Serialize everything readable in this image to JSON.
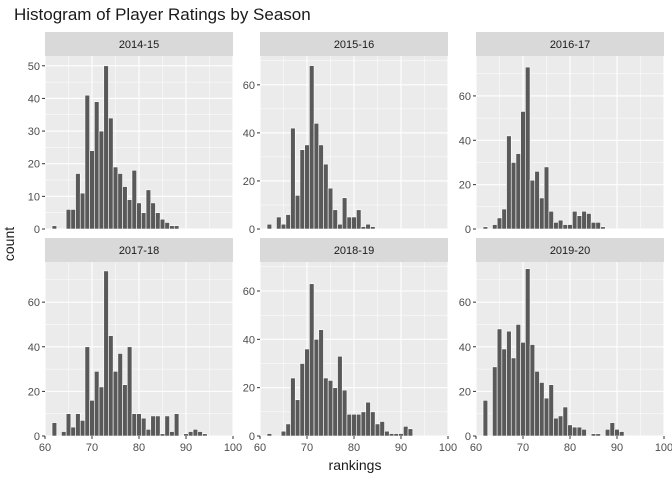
{
  "chart_data": {
    "type": "bar",
    "title": "Histogram of Player Ratings by Season",
    "xlabel": "rankings",
    "ylabel": "count",
    "xlim": [
      60,
      100
    ],
    "x_ticks": [
      60,
      70,
      80,
      90,
      100
    ],
    "bins": [
      62,
      64,
      65,
      66,
      67,
      68,
      69,
      70,
      71,
      72,
      73,
      74,
      75,
      76,
      77,
      78,
      79,
      80,
      81,
      82,
      83,
      84,
      85,
      86,
      87,
      88,
      89,
      90,
      91,
      92,
      93,
      94,
      95,
      96,
      97,
      98
    ],
    "grid": true,
    "panels": [
      {
        "season": "2014-15",
        "ylim": [
          0,
          53
        ],
        "y_ticks": [
          0,
          10,
          20,
          30,
          40,
          50
        ],
        "values": [
          1,
          0,
          6,
          6,
          17,
          11,
          41,
          24,
          39,
          30,
          50,
          34,
          19,
          17,
          13,
          9,
          18,
          8,
          5,
          12,
          8,
          5,
          3,
          2,
          1,
          1,
          0,
          0,
          0,
          0,
          0,
          0,
          0,
          0,
          0,
          0
        ]
      },
      {
        "season": "2015-16",
        "ylim": [
          0,
          72
        ],
        "y_ticks": [
          0,
          20,
          40,
          60
        ],
        "values": [
          2,
          5,
          2,
          6,
          42,
          14,
          33,
          35,
          68,
          44,
          35,
          27,
          17,
          8,
          2,
          13,
          5,
          5,
          8,
          1,
          2,
          1,
          0,
          0,
          0,
          0,
          0,
          0,
          0,
          0,
          0,
          0,
          0,
          0,
          0,
          0
        ]
      },
      {
        "season": "2016-17",
        "ylim": [
          0,
          78
        ],
        "y_ticks": [
          0,
          20,
          40,
          60
        ],
        "values": [
          1,
          2,
          5,
          9,
          42,
          30,
          34,
          53,
          73,
          22,
          26,
          14,
          28,
          8,
          3,
          4,
          2,
          2,
          8,
          6,
          8,
          7,
          3,
          3,
          1,
          0,
          0,
          0,
          0,
          0,
          0,
          0,
          0,
          0,
          0,
          0
        ]
      },
      {
        "season": "2017-18",
        "ylim": [
          0,
          78
        ],
        "y_ticks": [
          0,
          20,
          40,
          60
        ],
        "values": [
          6,
          2,
          10,
          4,
          10,
          7,
          40,
          16,
          29,
          22,
          74,
          45,
          29,
          37,
          23,
          40,
          10,
          10,
          8,
          3,
          9,
          9,
          1,
          9,
          2,
          10,
          0,
          1,
          2,
          3,
          2,
          1,
          0,
          0,
          0,
          0
        ]
      },
      {
        "season": "2018-19",
        "ylim": [
          0,
          72
        ],
        "y_ticks": [
          0,
          20,
          40,
          60
        ],
        "values": [
          1,
          0,
          2,
          5,
          24,
          15,
          30,
          36,
          63,
          40,
          44,
          24,
          23,
          20,
          33,
          19,
          9,
          9,
          9,
          10,
          14,
          10,
          5,
          6,
          2,
          1,
          1,
          1,
          4,
          3,
          0,
          0,
          0,
          0,
          0,
          0
        ]
      },
      {
        "season": "2019-20",
        "ylim": [
          0,
          78
        ],
        "y_ticks": [
          0,
          20,
          40,
          60
        ],
        "values": [
          16,
          31,
          48,
          39,
          47,
          35,
          50,
          42,
          75,
          41,
          29,
          24,
          17,
          23,
          8,
          9,
          13,
          5,
          4,
          4,
          3,
          0,
          1,
          1,
          0,
          3,
          6,
          3,
          2,
          0,
          0,
          0,
          0,
          0,
          0,
          0
        ]
      }
    ]
  },
  "colors": {
    "panel_bg": "#ebebeb",
    "strip_bg": "#d9d9d9",
    "grid": "#ffffff",
    "bar_fill": "#595959",
    "bar_stroke": "#ffffff",
    "text": "#1a1a1a",
    "tick_text": "#4d4d4d"
  }
}
